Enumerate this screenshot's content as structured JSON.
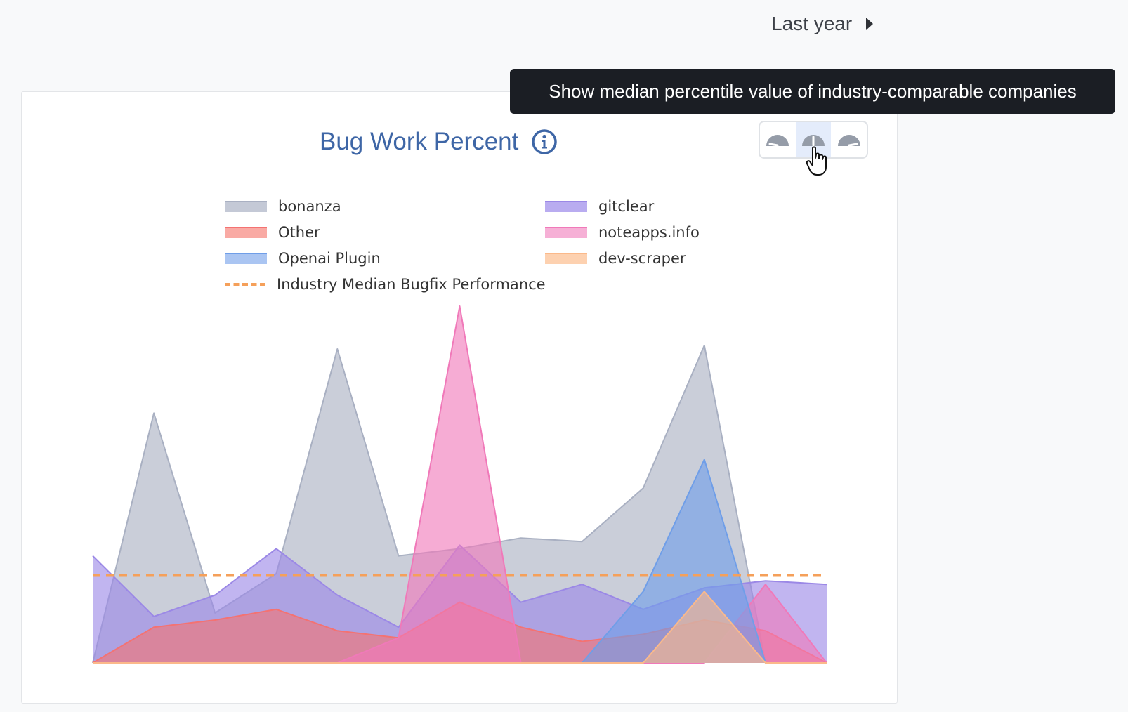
{
  "header": {
    "period_label": "Last year"
  },
  "tooltip": {
    "text": "Show median percentile value of industry-comparable companies"
  },
  "gauges": [
    "gauge-low-icon",
    "gauge-median-icon",
    "gauge-high-icon"
  ],
  "chart_data": {
    "type": "area",
    "title": "Bug Work Percent",
    "xlabel": "",
    "ylabel": "",
    "x": [
      0,
      1,
      2,
      3,
      4,
      5,
      6,
      7,
      8,
      9,
      10,
      11,
      12
    ],
    "ylim": [
      0,
      100
    ],
    "grid": false,
    "legend_position": "top",
    "series": [
      {
        "name": "bonanza",
        "color": "#a9b0c2",
        "values": [
          0,
          70,
          14,
          25,
          88,
          30,
          32,
          35,
          34,
          49,
          89,
          0,
          0
        ]
      },
      {
        "name": "gitclear",
        "color": "#9b88e6",
        "values": [
          30,
          13,
          19,
          32,
          19,
          10,
          33,
          17,
          22,
          15,
          21,
          23,
          22
        ]
      },
      {
        "name": "Other",
        "color": "#f47272",
        "values": [
          0,
          10,
          12,
          15,
          9,
          7,
          17,
          10,
          6,
          8,
          12,
          9,
          0
        ]
      },
      {
        "name": "noteapps.info",
        "color": "#f079b9",
        "values": [
          0,
          0,
          0,
          0,
          0,
          7,
          100,
          0,
          0,
          0,
          0,
          22,
          0
        ]
      },
      {
        "name": "Openai Plugin",
        "color": "#6f9ee8",
        "values": [
          0,
          0,
          0,
          0,
          0,
          0,
          0,
          0,
          0,
          20,
          57,
          0,
          0
        ]
      },
      {
        "name": "dev-scraper",
        "color": "#fbb98a",
        "values": [
          0,
          0,
          0,
          0,
          0,
          0,
          0,
          0,
          0,
          0,
          20,
          0,
          0
        ]
      }
    ],
    "reference_line": {
      "name": "Industry Median Bugfix Performance",
      "value": 24.5,
      "color": "#f5a05a"
    }
  }
}
